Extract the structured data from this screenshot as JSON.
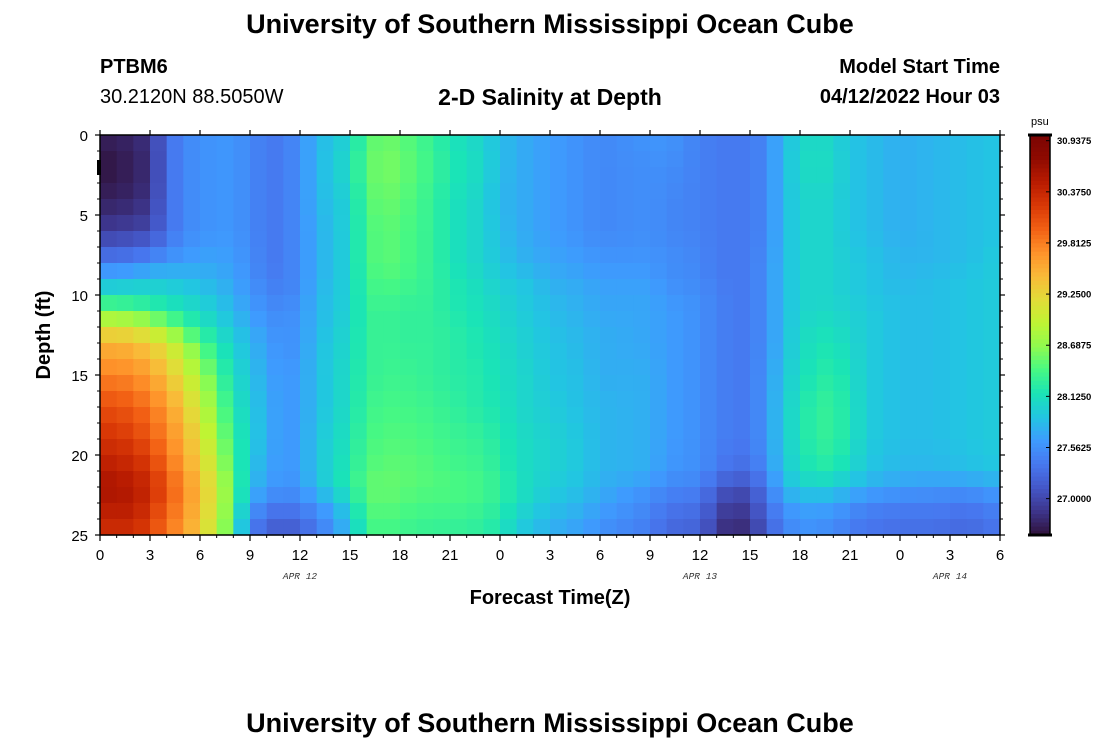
{
  "header": {
    "title": "University of Southern Mississippi Ocean Cube",
    "station": "PTBM6",
    "coords": "30.2120N  88.5050W",
    "plot_title": "2-D Salinity at Depth",
    "model_label": "Model Start Time",
    "model_time": "04/12/2022 Hour 03",
    "footer_title": "University of Southern Mississippi Ocean Cube"
  },
  "chart_data": {
    "type": "heatmap",
    "title": "2-D Salinity at Depth",
    "xlabel": "Forecast Time(Z)",
    "ylabel": "Depth (ft)",
    "x_ticks": [
      "0",
      "3",
      "6",
      "9",
      "12",
      "15",
      "18",
      "21",
      "0",
      "3",
      "6",
      "9",
      "12",
      "15",
      "18",
      "21",
      "0",
      "3",
      "6"
    ],
    "date_labels": [
      {
        "label": "APR 12",
        "tick_index": 4
      },
      {
        "label": "APR 13",
        "tick_index": 12
      },
      {
        "label": "APR 14",
        "tick_index": 17
      }
    ],
    "y_ticks": [
      0,
      5,
      10,
      15,
      20,
      25
    ],
    "ylim": [
      0,
      25
    ],
    "xlim_hours": [
      0,
      54
    ],
    "colorbar": {
      "unit": "psu",
      "labels": [
        "30.9375",
        "30.3750",
        "29.8125",
        "29.2500",
        "28.6875",
        "28.1250",
        "27.5625",
        "27.0000"
      ],
      "min": 26.6,
      "max": 31.0,
      "colors": [
        "#30123b",
        "#3d358b",
        "#4457c8",
        "#4777ef",
        "#3e9bfe",
        "#22c5e2",
        "#1ae4b6",
        "#46f884",
        "#8ffb4f",
        "#bff433",
        "#e2dc38",
        "#f9ba38",
        "#fe922a",
        "#f26014",
        "#d93806",
        "#b81b01",
        "#8f0a01",
        "#7a0403"
      ]
    },
    "cell_grid": {
      "hours_per_cell": 1,
      "ft_per_cell": 1,
      "columns": 54,
      "rows": 25
    },
    "field_keypoints": {
      "hours": [
        0,
        2,
        3,
        4,
        5,
        6,
        7,
        8,
        9,
        10,
        11,
        12,
        13,
        15,
        16,
        17,
        18,
        20,
        21,
        23,
        24,
        25,
        26,
        27,
        29,
        30,
        33,
        34,
        36,
        37,
        38,
        39,
        40,
        41,
        42,
        43,
        44,
        45,
        46,
        48,
        50,
        52,
        54
      ],
      "depths": [
        0,
        2,
        4,
        6,
        8,
        9,
        10,
        11,
        12,
        13,
        15,
        17,
        19,
        21,
        22,
        23,
        24,
        25
      ],
      "salinity_psu": [
        [
          26.7,
          26.75,
          26.85,
          27.3,
          27.5,
          27.55,
          27.6,
          27.6,
          27.5,
          27.4,
          27.4,
          27.55,
          27.8,
          28.0,
          28.45,
          28.55,
          28.5,
          28.3,
          28.15,
          28.0,
          27.85,
          27.75,
          27.7,
          27.65,
          27.55,
          27.5,
          27.6,
          27.6,
          27.45,
          27.4,
          27.4,
          27.4,
          27.5,
          27.85,
          28.0,
          28.1,
          28.0,
          27.9,
          27.85,
          27.75,
          27.8,
          27.85,
          27.9
        ],
        [
          26.6,
          26.7,
          26.8,
          27.3,
          27.5,
          27.55,
          27.6,
          27.6,
          27.5,
          27.4,
          27.4,
          27.55,
          27.8,
          28.1,
          28.5,
          28.6,
          28.55,
          28.35,
          28.2,
          28.05,
          27.85,
          27.75,
          27.7,
          27.65,
          27.55,
          27.5,
          27.55,
          27.55,
          27.45,
          27.4,
          27.4,
          27.4,
          27.5,
          27.85,
          28.05,
          28.1,
          28.05,
          27.9,
          27.85,
          27.75,
          27.8,
          27.85,
          27.9
        ],
        [
          26.7,
          26.75,
          26.85,
          27.3,
          27.5,
          27.55,
          27.6,
          27.6,
          27.5,
          27.4,
          27.4,
          27.55,
          27.8,
          28.0,
          28.45,
          28.55,
          28.5,
          28.3,
          28.15,
          28.0,
          27.8,
          27.75,
          27.7,
          27.65,
          27.55,
          27.5,
          27.55,
          27.5,
          27.45,
          27.4,
          27.4,
          27.4,
          27.5,
          27.85,
          28.0,
          28.05,
          28.0,
          27.9,
          27.85,
          27.75,
          27.8,
          27.85,
          27.9
        ],
        [
          26.9,
          26.95,
          27.0,
          27.3,
          27.5,
          27.55,
          27.6,
          27.6,
          27.5,
          27.4,
          27.4,
          27.55,
          27.75,
          28.0,
          28.4,
          28.5,
          28.45,
          28.3,
          28.15,
          28.0,
          27.85,
          27.75,
          27.7,
          27.65,
          27.55,
          27.5,
          27.55,
          27.5,
          27.45,
          27.4,
          27.4,
          27.4,
          27.5,
          27.85,
          28.0,
          28.05,
          28.0,
          27.9,
          27.85,
          27.75,
          27.8,
          27.85,
          27.9
        ],
        [
          27.4,
          27.45,
          27.55,
          27.6,
          27.65,
          27.7,
          27.7,
          27.65,
          27.55,
          27.4,
          27.4,
          27.55,
          27.75,
          28.0,
          28.4,
          28.5,
          28.45,
          28.3,
          28.15,
          28.0,
          27.9,
          27.8,
          27.75,
          27.7,
          27.65,
          27.6,
          27.6,
          27.55,
          27.5,
          27.4,
          27.4,
          27.4,
          27.55,
          27.85,
          28.0,
          28.05,
          28.0,
          27.95,
          27.9,
          27.8,
          27.8,
          27.85,
          27.95
        ],
        [
          27.8,
          27.85,
          27.9,
          27.9,
          27.85,
          27.8,
          27.75,
          27.7,
          27.55,
          27.45,
          27.4,
          27.55,
          27.75,
          28.0,
          28.35,
          28.45,
          28.4,
          28.3,
          28.2,
          28.05,
          27.95,
          27.9,
          27.85,
          27.75,
          27.7,
          27.65,
          27.65,
          27.55,
          27.5,
          27.4,
          27.4,
          27.4,
          27.55,
          27.85,
          28.0,
          28.05,
          28.0,
          27.95,
          27.9,
          27.8,
          27.85,
          27.9,
          27.95
        ],
        [
          28.1,
          28.1,
          28.1,
          28.05,
          28.0,
          27.95,
          27.85,
          27.75,
          27.6,
          27.5,
          27.45,
          27.55,
          27.8,
          28.0,
          28.35,
          28.4,
          28.35,
          28.3,
          28.2,
          28.1,
          28.0,
          27.95,
          27.9,
          27.8,
          27.75,
          27.7,
          27.7,
          27.6,
          27.55,
          27.45,
          27.4,
          27.4,
          27.55,
          27.85,
          28.0,
          28.05,
          28.0,
          27.95,
          27.9,
          27.85,
          27.85,
          27.9,
          27.95
        ],
        [
          28.6,
          28.5,
          28.35,
          28.25,
          28.15,
          28.05,
          27.95,
          27.8,
          27.65,
          27.55,
          27.5,
          27.6,
          27.8,
          28.0,
          28.3,
          28.35,
          28.3,
          28.3,
          28.2,
          28.1,
          28.05,
          27.95,
          27.9,
          27.85,
          27.75,
          27.7,
          27.7,
          27.65,
          27.55,
          27.45,
          27.4,
          27.4,
          27.55,
          27.85,
          28.0,
          28.05,
          28.05,
          28.0,
          27.95,
          27.85,
          27.85,
          27.9,
          27.95
        ],
        [
          29.1,
          29.05,
          28.9,
          28.7,
          28.4,
          28.2,
          28.05,
          27.9,
          27.75,
          27.6,
          27.55,
          27.6,
          27.8,
          28.05,
          28.3,
          28.35,
          28.3,
          28.3,
          28.25,
          28.15,
          28.05,
          28.0,
          27.95,
          27.85,
          27.8,
          27.75,
          27.7,
          27.65,
          27.55,
          27.45,
          27.4,
          27.4,
          27.55,
          27.85,
          28.05,
          28.1,
          28.1,
          28.0,
          27.95,
          27.85,
          27.85,
          27.9,
          27.95
        ],
        [
          29.5,
          29.45,
          29.3,
          29.1,
          28.8,
          28.45,
          28.2,
          28.0,
          27.8,
          27.65,
          27.55,
          27.6,
          27.85,
          28.05,
          28.3,
          28.35,
          28.3,
          28.3,
          28.25,
          28.15,
          28.1,
          28.0,
          27.95,
          27.9,
          27.8,
          27.75,
          27.7,
          27.65,
          27.55,
          27.45,
          27.4,
          27.4,
          27.55,
          27.85,
          28.05,
          28.15,
          28.15,
          28.05,
          27.95,
          27.85,
          27.85,
          27.9,
          27.95
        ],
        [
          29.8,
          29.75,
          29.6,
          29.4,
          29.1,
          28.8,
          28.4,
          28.1,
          27.9,
          27.7,
          27.6,
          27.65,
          27.85,
          28.1,
          28.3,
          28.35,
          28.35,
          28.3,
          28.25,
          28.2,
          28.1,
          28.05,
          28.0,
          27.9,
          27.85,
          27.75,
          27.75,
          27.65,
          27.55,
          27.45,
          27.4,
          27.4,
          27.6,
          27.9,
          28.1,
          28.2,
          28.25,
          28.1,
          27.95,
          27.85,
          27.85,
          27.9,
          27.95
        ],
        [
          30.1,
          30.0,
          29.85,
          29.65,
          29.35,
          29.0,
          28.6,
          28.2,
          27.95,
          27.75,
          27.6,
          27.65,
          27.85,
          28.1,
          28.35,
          28.4,
          28.4,
          28.35,
          28.3,
          28.2,
          28.15,
          28.05,
          28.0,
          27.95,
          27.85,
          27.8,
          27.75,
          27.65,
          27.55,
          27.45,
          27.4,
          27.4,
          27.6,
          27.95,
          28.15,
          28.3,
          28.3,
          28.15,
          27.95,
          27.85,
          27.85,
          27.9,
          27.95
        ],
        [
          30.3,
          30.2,
          30.0,
          29.8,
          29.5,
          29.2,
          28.75,
          28.3,
          28.0,
          27.75,
          27.6,
          27.65,
          27.9,
          28.15,
          28.4,
          28.45,
          28.45,
          28.4,
          28.35,
          28.3,
          28.2,
          28.1,
          28.05,
          28.0,
          27.9,
          27.8,
          27.75,
          27.65,
          27.55,
          27.45,
          27.4,
          27.4,
          27.6,
          27.95,
          28.15,
          28.3,
          28.3,
          28.15,
          27.95,
          27.85,
          27.85,
          27.9,
          27.95
        ],
        [
          30.5,
          30.4,
          30.25,
          29.95,
          29.65,
          29.35,
          28.9,
          28.4,
          27.9,
          27.7,
          27.6,
          27.65,
          27.9,
          28.2,
          28.45,
          28.5,
          28.5,
          28.45,
          28.4,
          28.35,
          28.25,
          28.1,
          28.05,
          28.0,
          27.9,
          27.8,
          27.75,
          27.6,
          27.55,
          27.4,
          27.3,
          27.3,
          27.55,
          27.9,
          28.1,
          28.2,
          28.2,
          28.05,
          27.9,
          27.8,
          27.8,
          27.85,
          27.9
        ],
        [
          30.6,
          30.5,
          30.35,
          30.05,
          29.75,
          29.45,
          29.0,
          28.5,
          27.85,
          27.65,
          27.55,
          27.6,
          27.85,
          28.25,
          28.5,
          28.55,
          28.5,
          28.45,
          28.45,
          28.4,
          28.3,
          28.15,
          28.05,
          27.95,
          27.85,
          27.75,
          27.6,
          27.5,
          27.45,
          27.2,
          27.05,
          27.1,
          27.4,
          27.8,
          27.95,
          28.0,
          27.95,
          27.85,
          27.75,
          27.65,
          27.6,
          27.6,
          27.7
        ],
        [
          30.5,
          30.5,
          30.3,
          30.0,
          29.75,
          29.4,
          29.0,
          28.45,
          27.7,
          27.5,
          27.4,
          27.5,
          27.6,
          28.0,
          28.45,
          28.5,
          28.45,
          28.4,
          28.4,
          28.35,
          28.25,
          28.1,
          28.0,
          27.9,
          27.8,
          27.7,
          27.5,
          27.4,
          27.35,
          27.05,
          26.9,
          27.0,
          27.3,
          27.65,
          27.7,
          27.75,
          27.7,
          27.6,
          27.5,
          27.45,
          27.45,
          27.4,
          27.5
        ],
        [
          30.4,
          30.4,
          30.2,
          29.9,
          29.7,
          29.35,
          28.95,
          28.4,
          27.5,
          27.3,
          27.2,
          27.3,
          27.45,
          27.9,
          28.4,
          28.45,
          28.4,
          28.35,
          28.35,
          28.3,
          28.2,
          28.0,
          27.9,
          27.8,
          27.7,
          27.6,
          27.45,
          27.3,
          27.25,
          26.95,
          26.8,
          26.9,
          27.2,
          27.5,
          27.6,
          27.6,
          27.55,
          27.45,
          27.4,
          27.35,
          27.35,
          27.3,
          27.4
        ],
        [
          30.3,
          30.3,
          30.15,
          29.85,
          29.65,
          29.3,
          28.9,
          28.35,
          27.4,
          27.2,
          27.1,
          27.2,
          27.35,
          27.8,
          28.35,
          28.4,
          28.35,
          28.3,
          28.3,
          28.25,
          28.15,
          27.95,
          27.85,
          27.75,
          27.65,
          27.55,
          27.4,
          27.25,
          27.2,
          26.9,
          26.7,
          26.85,
          27.15,
          27.45,
          27.55,
          27.55,
          27.5,
          27.4,
          27.35,
          27.3,
          27.3,
          27.25,
          27.35
        ]
      ]
    }
  }
}
